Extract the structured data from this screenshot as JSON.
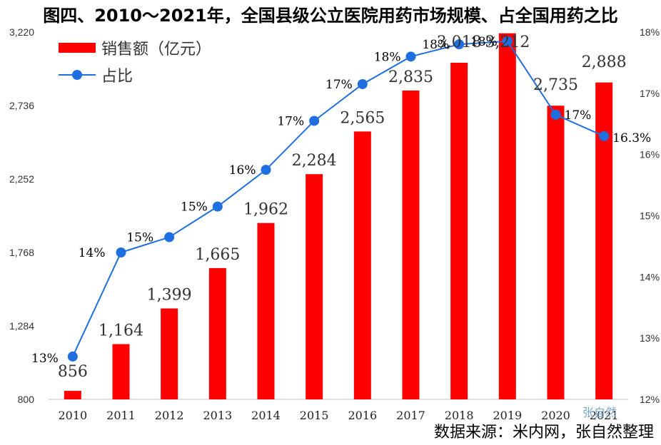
{
  "title": "图四、2010～2021年，全国县级公立医院用药市场规模、占全国用药之比",
  "source": "数据来源：米内网，张自然整理",
  "watermark": "张自然",
  "chart_data": {
    "type": "bar",
    "categories": [
      "2010",
      "2011",
      "2012",
      "2013",
      "2014",
      "2015",
      "2016",
      "2017",
      "2018",
      "2019",
      "2020",
      "2021"
    ],
    "series": [
      {
        "name": "销售额（亿元）",
        "type": "bar",
        "axis": "left",
        "color": "#ff0000",
        "values": [
          856,
          1164,
          1399,
          1665,
          1962,
          2284,
          2565,
          2835,
          3018,
          3212,
          2735,
          2888
        ],
        "labels": [
          "856",
          "1,164",
          "1,399",
          "1,665",
          "1,962",
          "2,284",
          "2,565",
          "2,835",
          "3,018",
          "3,212",
          "2,735",
          "2,888"
        ]
      },
      {
        "name": "占比",
        "type": "line",
        "axis": "right",
        "color": "#1f6fe0",
        "values": [
          12.7,
          14.4,
          14.65,
          15.15,
          15.75,
          16.55,
          17.15,
          17.6,
          17.8,
          17.85,
          16.65,
          16.3
        ],
        "labels": [
          "13%",
          "14%",
          "15%",
          "15%",
          "16%",
          "17%",
          "17%",
          "18%",
          "18%",
          "18%",
          "17%",
          "16.3%"
        ]
      }
    ],
    "y_left": {
      "min": 800,
      "max": 3220,
      "ticks": [
        "800",
        "1,284",
        "1,768",
        "2,252",
        "2,736",
        "3,220"
      ]
    },
    "y_right": {
      "min": 12,
      "max": 18,
      "ticks": [
        "12%",
        "13%",
        "14%",
        "15%",
        "16%",
        "17%",
        "18%"
      ]
    },
    "grid": false,
    "legend": "top-left"
  }
}
